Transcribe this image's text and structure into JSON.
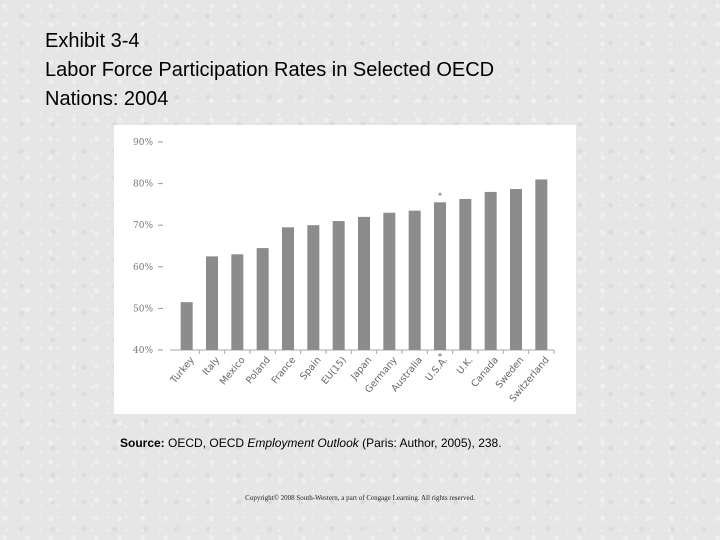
{
  "slide": {
    "title_line1": "Exhibit 3-4",
    "title_line2": "Labor Force Participation Rates in Selected OECD",
    "title_line3": "Nations: 2004"
  },
  "source": {
    "label": "Source:",
    "text_before": "OECD, OECD",
    "publication": "Employment Outlook",
    "text_after": "(Paris: Author, 2005), 238."
  },
  "copyright": "Copyright© 2008 South-Western, a part of Cengage Learning. All rights reserved.",
  "chart_data": {
    "type": "bar",
    "title": "",
    "xlabel": "",
    "ylabel": "",
    "ylim": [
      40,
      90
    ],
    "yticks": [
      90,
      80,
      70,
      60,
      50,
      40
    ],
    "ytick_labels": [
      "90%",
      "80%",
      "70%",
      "60%",
      "50%",
      "40%"
    ],
    "categories": [
      "Turkey",
      "Italy",
      "Mexico",
      "Poland",
      "France",
      "Spain",
      "EU(15)",
      "Japan",
      "Germany",
      "Australia",
      "U.S.A.",
      "U.K.",
      "Canada",
      "Sweden",
      "Switzerland"
    ],
    "values": [
      51.5,
      62.5,
      63,
      64.5,
      69.5,
      70,
      71,
      72,
      73,
      73.5,
      75.5,
      76.3,
      78,
      78.7,
      81
    ],
    "annotations": [
      {
        "category": "U.S.A.",
        "text": "*"
      }
    ],
    "bar_color": "#8c8c8c",
    "grid": false
  }
}
